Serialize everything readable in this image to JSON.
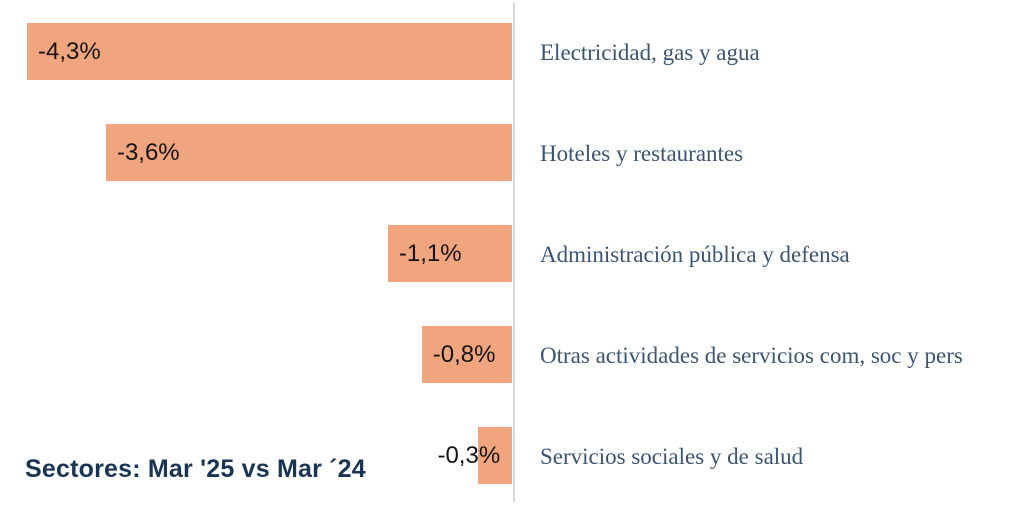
{
  "chart_data": {
    "type": "bar",
    "orientation": "horizontal",
    "title": "Sectores: Mar '25 vs Mar ´24",
    "categories": [
      "Electricidad, gas y agua",
      "Hoteles y restaurantes",
      "Administración pública y defensa",
      "Otras actividades de servicios com, soc y pers",
      "Servicios sociales y de salud"
    ],
    "values": [
      -4.3,
      -3.6,
      -1.1,
      -0.8,
      -0.3
    ],
    "value_labels": [
      "-4,3%",
      "-3,6%",
      "-1,1%",
      "-0,8%",
      "-0,3%"
    ],
    "xlim": [
      -4.3,
      0
    ],
    "grid": false,
    "legend": false,
    "value_label_position": "inside-start",
    "zero_axis": "right",
    "colors": {
      "bar": "#F1A57F",
      "value_label": "#141414",
      "category_label": "#3B5571",
      "axis_line": "#D9D9D9",
      "title": "#1A3553"
    }
  }
}
